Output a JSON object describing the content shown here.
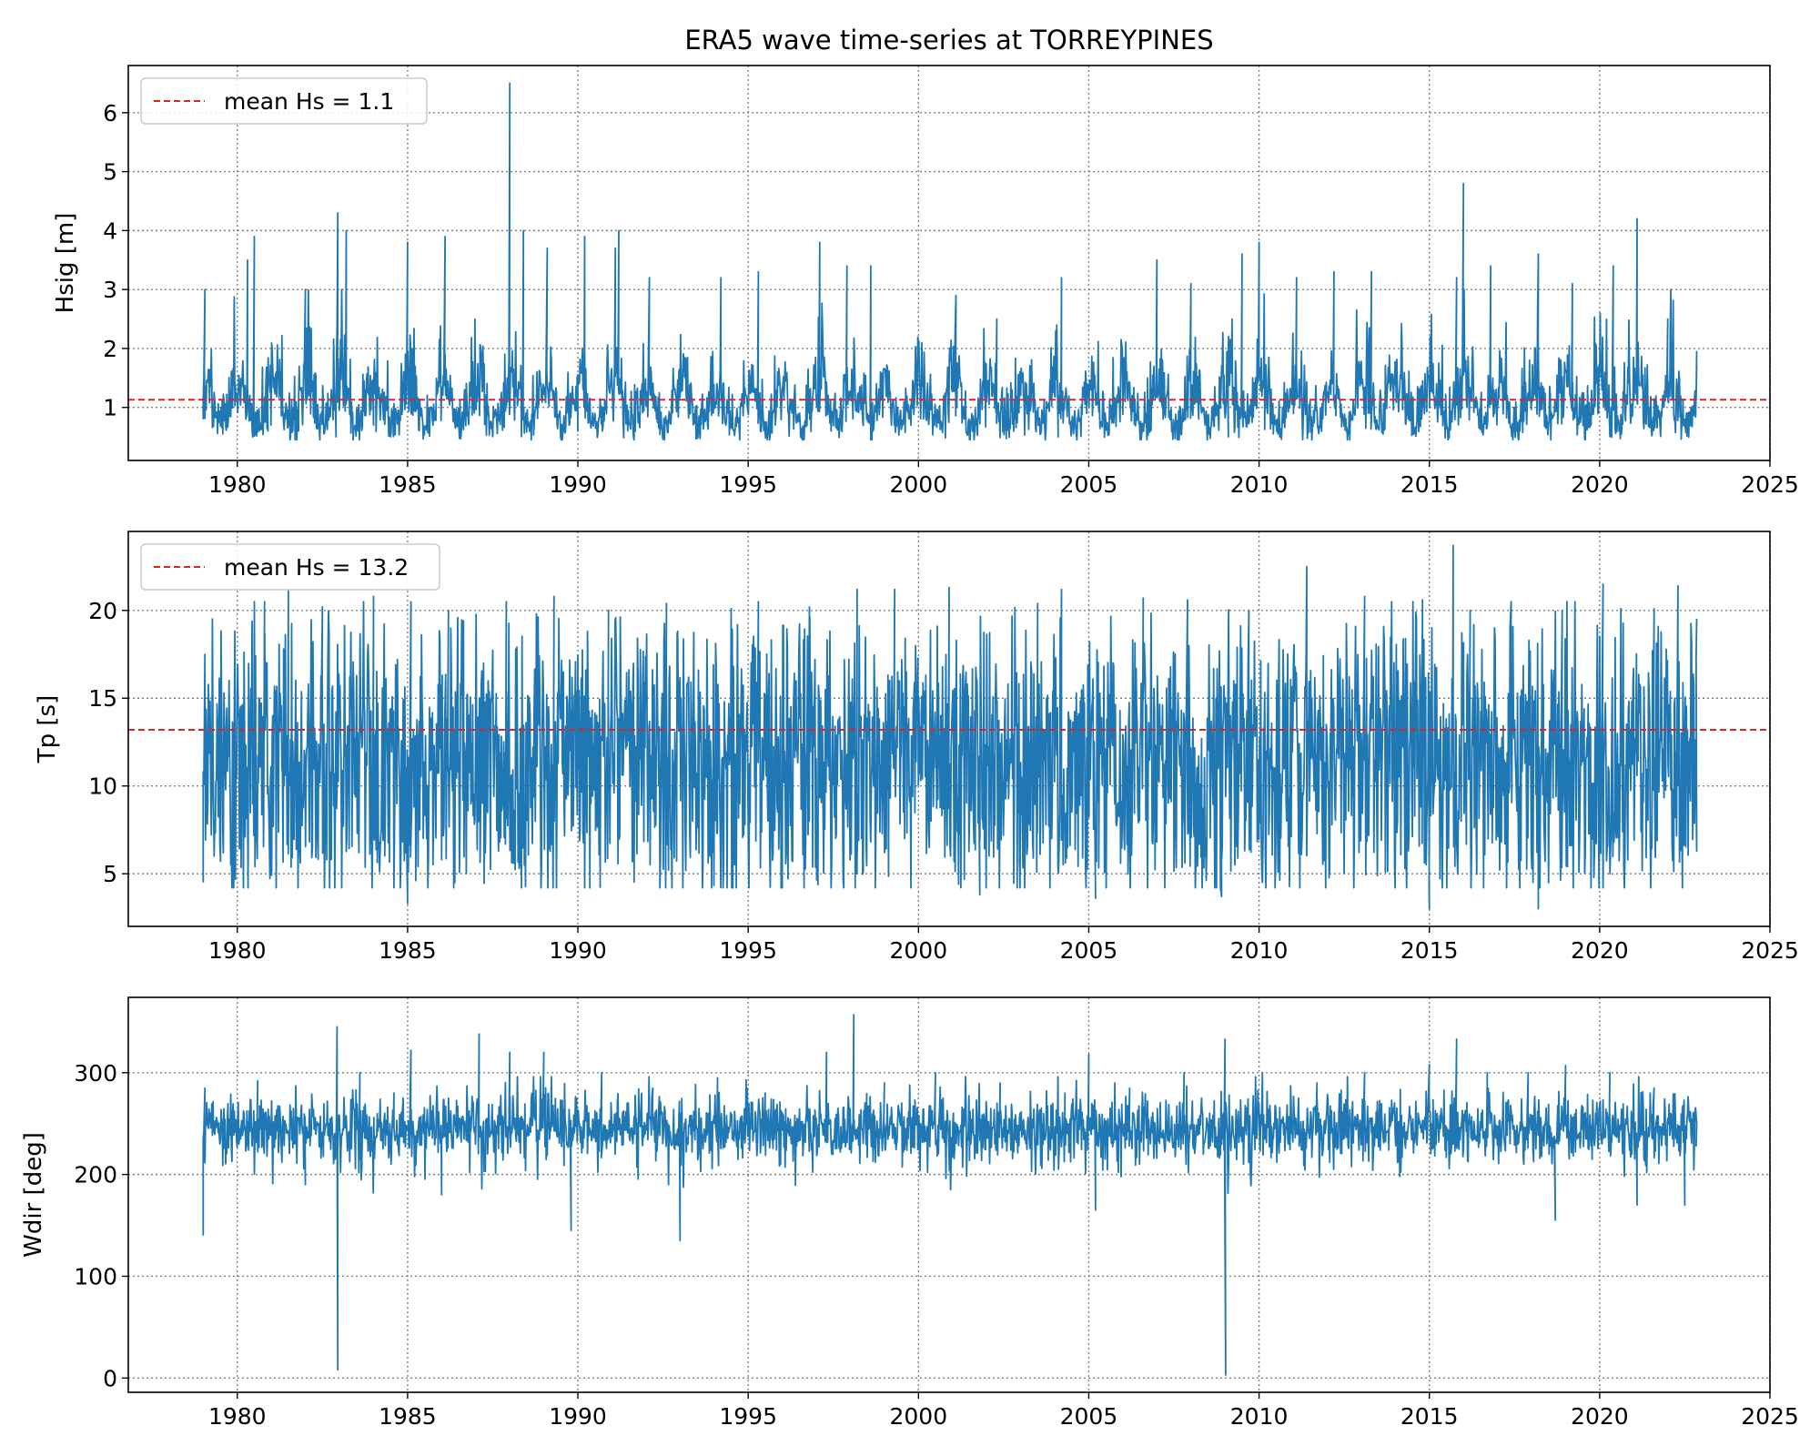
{
  "figure": {
    "title": "ERA5 wave time-series at TORREYPINES"
  },
  "colors": {
    "series": "#1f77b4",
    "mean_line": "#d62728",
    "grid": "#808080",
    "legend_border": "#cccccc"
  },
  "chart_data": [
    {
      "type": "line",
      "ylabel": "Hsig [m]",
      "xlabel": "",
      "xlim": [
        1976.8,
        2025.0
      ],
      "ylim": [
        0.1,
        6.8
      ],
      "xticks": [
        1980,
        1985,
        1990,
        1995,
        2000,
        2005,
        2010,
        2015,
        2020,
        2025
      ],
      "yticks": [
        1,
        2,
        3,
        4,
        5,
        6
      ],
      "grid": true,
      "data_range": [
        1979.0,
        2022.85
      ],
      "series": [
        {
          "approx_points": [
            [
              1979.0,
              0.8
            ],
            [
              1979.05,
              3.0
            ],
            [
              1980.3,
              3.5
            ],
            [
              1980.5,
              3.9
            ],
            [
              1980.9,
              0.6
            ],
            [
              1981.8,
              0.6
            ],
            [
              1982.0,
              3.0
            ],
            [
              1982.9,
              0.5
            ],
            [
              1982.95,
              4.3
            ],
            [
              1983.2,
              4.0
            ],
            [
              1984.0,
              0.7
            ],
            [
              1985.0,
              3.8
            ],
            [
              1985.5,
              0.6
            ],
            [
              1986.1,
              3.9
            ],
            [
              1987.5,
              0.7
            ],
            [
              1988.0,
              6.5
            ],
            [
              1988.4,
              4.0
            ],
            [
              1989.1,
              3.7
            ],
            [
              1990.0,
              0.6
            ],
            [
              1990.2,
              3.9
            ],
            [
              1991.1,
              3.7
            ],
            [
              1991.2,
              4.0
            ],
            [
              1992.1,
              3.2
            ],
            [
              1994.2,
              3.2
            ],
            [
              1995.3,
              3.3
            ],
            [
              1997.1,
              3.8
            ],
            [
              1997.9,
              3.4
            ],
            [
              1998.6,
              3.4
            ],
            [
              2001.1,
              2.9
            ],
            [
              2002.3,
              2.5
            ],
            [
              2004.1,
              0.5
            ],
            [
              2004.2,
              3.2
            ],
            [
              2007.0,
              3.5
            ],
            [
              2008.0,
              3.1
            ],
            [
              2009.1,
              0.5
            ],
            [
              2009.5,
              3.6
            ],
            [
              2010.0,
              3.8
            ],
            [
              2011.1,
              3.2
            ],
            [
              2012.2,
              3.3
            ],
            [
              2013.3,
              3.3
            ],
            [
              2015.8,
              3.2
            ],
            [
              2016.0,
              4.8
            ],
            [
              2016.8,
              3.4
            ],
            [
              2018.2,
              3.6
            ],
            [
              2019.2,
              3.1
            ],
            [
              2020.4,
              3.4
            ],
            [
              2021.1,
              4.2
            ],
            [
              2022.0,
              2.5
            ],
            [
              2022.85,
              1.7
            ]
          ]
        }
      ],
      "mean_line": {
        "value": 1.13
      },
      "legend": {
        "entries": [
          "mean Hs = 1.1"
        ],
        "placement": "upper-left"
      }
    },
    {
      "type": "line",
      "ylabel": "Tp [s]",
      "xlabel": "",
      "xlim": [
        1976.8,
        2025.0
      ],
      "ylim": [
        2.0,
        24.5
      ],
      "xticks": [
        1980,
        1985,
        1990,
        1995,
        2000,
        2005,
        2010,
        2015,
        2020,
        2025
      ],
      "yticks": [
        5,
        10,
        15,
        20
      ],
      "grid": true,
      "data_range": [
        1979.0,
        2022.85
      ],
      "series": [
        {
          "approx_points": [
            [
              1979.0,
              4.5
            ],
            [
              1979.05,
              17.5
            ],
            [
              1980.8,
              20.5
            ],
            [
              1981.5,
              21.2
            ],
            [
              1982.5,
              20.2
            ],
            [
              1984.0,
              20.8
            ],
            [
              1985.0,
              3.3
            ],
            [
              1985.1,
              20.5
            ],
            [
              1986.2,
              20.0
            ],
            [
              1987.9,
              20.5
            ],
            [
              1989.3,
              20.8
            ],
            [
              1990.9,
              20.0
            ],
            [
              1992.6,
              20.4
            ],
            [
              1994.5,
              20.1
            ],
            [
              1995.3,
              20.5
            ],
            [
              1996.8,
              20.2
            ],
            [
              1998.2,
              21.2
            ],
            [
              1999.3,
              21.2
            ],
            [
              2000.9,
              21.3
            ],
            [
              2001.8,
              3.8
            ],
            [
              2003.5,
              20.4
            ],
            [
              2004.2,
              21.2
            ],
            [
              2005.2,
              3.6
            ],
            [
              2006.6,
              20.7
            ],
            [
              2007.9,
              20.6
            ],
            [
              2008.9,
              3.7
            ],
            [
              2009.7,
              20.0
            ],
            [
              2011.4,
              22.5
            ],
            [
              2013.1,
              20.8
            ],
            [
              2014.8,
              20.6
            ],
            [
              2015.0,
              3.0
            ],
            [
              2015.7,
              23.7
            ],
            [
              2016.2,
              20.0
            ],
            [
              2017.4,
              20.5
            ],
            [
              2018.2,
              3.0
            ],
            [
              2018.9,
              20.0
            ],
            [
              2020.1,
              21.5
            ],
            [
              2021.6,
              20.1
            ],
            [
              2022.3,
              21.4
            ],
            [
              2022.85,
              6.3
            ]
          ]
        }
      ],
      "mean_line": {
        "value": 13.2
      },
      "legend": {
        "entries": [
          "mean Hs = 13.2"
        ],
        "placement": "upper-left"
      }
    },
    {
      "type": "line",
      "ylabel": "Wdir [deg]",
      "xlabel": "",
      "xlim": [
        1976.8,
        2025.0
      ],
      "ylim": [
        -14,
        374
      ],
      "xticks": [
        1980,
        1985,
        1990,
        1995,
        2000,
        2005,
        2010,
        2015,
        2020,
        2025
      ],
      "yticks": [
        0,
        100,
        200,
        300
      ],
      "grid": true,
      "data_range": [
        1979.0,
        2022.85
      ],
      "series": [
        {
          "approx_points": [
            [
              1979.0,
              140
            ],
            [
              1979.05,
              285
            ],
            [
              1980.6,
              292
            ],
            [
              1982.0,
              190
            ],
            [
              1982.93,
              345
            ],
            [
              1982.95,
              8
            ],
            [
              1983.6,
              300
            ],
            [
              1984.6,
              280
            ],
            [
              1985.1,
              322
            ],
            [
              1986.0,
              180
            ],
            [
              1987.1,
              338
            ],
            [
              1988.0,
              320
            ],
            [
              1989.0,
              320
            ],
            [
              1989.8,
              145
            ],
            [
              1990.7,
              300
            ],
            [
              1992.2,
              285
            ],
            [
              1993.0,
              135
            ],
            [
              1994.1,
              295
            ],
            [
              1995.5,
              280
            ],
            [
              1997.3,
              320
            ],
            [
              1998.1,
              357
            ],
            [
              1999.0,
              290
            ],
            [
              2000.5,
              300
            ],
            [
              2002.4,
              290
            ],
            [
              2004.3,
              280
            ],
            [
              2005.0,
              318
            ],
            [
              2005.2,
              165
            ],
            [
              2006.2,
              285
            ],
            [
              2007.8,
              300
            ],
            [
              2009.0,
              333
            ],
            [
              2009.02,
              3
            ],
            [
              2010.1,
              300
            ],
            [
              2011.7,
              290
            ],
            [
              2013.1,
              300
            ],
            [
              2015.0,
              308
            ],
            [
              2015.8,
              333
            ],
            [
              2016.7,
              300
            ],
            [
              2017.9,
              300
            ],
            [
              2018.7,
              155
            ],
            [
              2019.0,
              307
            ],
            [
              2020.3,
              300
            ],
            [
              2021.1,
              170
            ],
            [
              2021.6,
              285
            ],
            [
              2022.5,
              170
            ],
            [
              2022.85,
              250
            ]
          ]
        }
      ],
      "mean_line": null,
      "legend": null
    }
  ]
}
